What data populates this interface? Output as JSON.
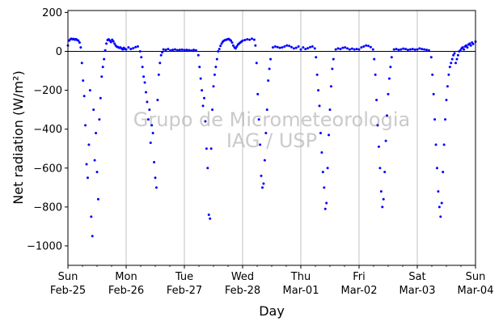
{
  "chart_data": {
    "type": "scatter",
    "title": "",
    "xlabel": "Day",
    "ylabel": "Net radiation (W/m²)",
    "ylim": [
      -1100,
      210
    ],
    "xlim": [
      0,
      7
    ],
    "yticks": [
      200,
      0,
      -200,
      -400,
      -600,
      -800,
      -1000
    ],
    "ytick_labels": [
      "200",
      "0",
      "−200",
      "−400",
      "−600",
      "−800",
      "−1000"
    ],
    "xticks": [
      {
        "pos": 0,
        "day": "Sun",
        "date": "Feb-25"
      },
      {
        "pos": 1,
        "day": "Mon",
        "date": "Feb-26"
      },
      {
        "pos": 2,
        "day": "Tue",
        "date": "Feb-27"
      },
      {
        "pos": 3,
        "day": "Wed",
        "date": "Feb-28"
      },
      {
        "pos": 4,
        "day": "Thu",
        "date": "Mar-01"
      },
      {
        "pos": 5,
        "day": "Fri",
        "date": "Mar-02"
      },
      {
        "pos": 6,
        "day": "Sat",
        "date": "Mar-03"
      },
      {
        "pos": 7,
        "day": "Sun",
        "date": "Mar-04"
      }
    ],
    "grid": "vertical",
    "zero_line": 0,
    "marker_color": "#0000ff",
    "watermark": [
      "Grupo de Micrometeorologia",
      "IAG / USP"
    ],
    "series": [
      {
        "values": [
          [
            0.0,
            30
          ],
          [
            0.02,
            55
          ],
          [
            0.04,
            62
          ],
          [
            0.06,
            65
          ],
          [
            0.08,
            62
          ],
          [
            0.1,
            64
          ],
          [
            0.12,
            60
          ],
          [
            0.14,
            63
          ],
          [
            0.16,
            58
          ],
          [
            0.18,
            55
          ],
          [
            0.2,
            45
          ],
          [
            0.22,
            20
          ],
          [
            0.24,
            -60
          ],
          [
            0.26,
            -150
          ],
          [
            0.28,
            -230
          ],
          [
            0.3,
            -380
          ],
          [
            0.32,
            -580
          ],
          [
            0.34,
            -650
          ],
          [
            0.36,
            -480
          ],
          [
            0.38,
            -200
          ],
          [
            0.4,
            -850
          ],
          [
            0.42,
            -950
          ],
          [
            0.44,
            -300
          ],
          [
            0.46,
            -560
          ],
          [
            0.48,
            -420
          ],
          [
            0.5,
            -620
          ],
          [
            0.52,
            -760
          ],
          [
            0.54,
            -350
          ],
          [
            0.56,
            -240
          ],
          [
            0.58,
            -130
          ],
          [
            0.6,
            -80
          ],
          [
            0.62,
            -40
          ],
          [
            0.64,
            5
          ],
          [
            0.66,
            40
          ],
          [
            0.68,
            58
          ],
          [
            0.7,
            62
          ],
          [
            0.72,
            55
          ],
          [
            0.74,
            48
          ],
          [
            0.76,
            60
          ],
          [
            0.78,
            52
          ],
          [
            0.8,
            40
          ],
          [
            0.82,
            30
          ],
          [
            0.84,
            24
          ],
          [
            0.86,
            22
          ],
          [
            0.88,
            18
          ],
          [
            0.9,
            20
          ],
          [
            0.92,
            15
          ],
          [
            0.94,
            10
          ],
          [
            0.96,
            18
          ],
          [
            0.98,
            12
          ],
          [
            1.0,
            10
          ],
          [
            1.04,
            20
          ],
          [
            1.08,
            12
          ],
          [
            1.12,
            16
          ],
          [
            1.16,
            22
          ],
          [
            1.2,
            25
          ],
          [
            1.24,
            0
          ],
          [
            1.26,
            -30
          ],
          [
            1.28,
            -80
          ],
          [
            1.3,
            -130
          ],
          [
            1.32,
            -160
          ],
          [
            1.34,
            -210
          ],
          [
            1.36,
            -260
          ],
          [
            1.38,
            -350
          ],
          [
            1.4,
            -300
          ],
          [
            1.42,
            -470
          ],
          [
            1.44,
            -380
          ],
          [
            1.46,
            -420
          ],
          [
            1.48,
            -570
          ],
          [
            1.5,
            -650
          ],
          [
            1.52,
            -700
          ],
          [
            1.54,
            -250
          ],
          [
            1.56,
            -120
          ],
          [
            1.58,
            -60
          ],
          [
            1.6,
            -20
          ],
          [
            1.62,
            -5
          ],
          [
            1.64,
            10
          ],
          [
            1.68,
            8
          ],
          [
            1.72,
            12
          ],
          [
            1.76,
            5
          ],
          [
            1.8,
            8
          ],
          [
            1.84,
            10
          ],
          [
            1.88,
            6
          ],
          [
            1.92,
            8
          ],
          [
            1.96,
            9
          ],
          [
            2.0,
            7
          ],
          [
            2.04,
            8
          ],
          [
            2.08,
            6
          ],
          [
            2.12,
            4
          ],
          [
            2.16,
            8
          ],
          [
            2.2,
            5
          ],
          [
            2.24,
            -20
          ],
          [
            2.26,
            -80
          ],
          [
            2.28,
            -140
          ],
          [
            2.3,
            -200
          ],
          [
            2.32,
            -280
          ],
          [
            2.34,
            -240
          ],
          [
            2.36,
            -360
          ],
          [
            2.38,
            -500
          ],
          [
            2.4,
            -600
          ],
          [
            2.42,
            -840
          ],
          [
            2.44,
            -860
          ],
          [
            2.46,
            -500
          ],
          [
            2.48,
            -300
          ],
          [
            2.5,
            -180
          ],
          [
            2.52,
            -120
          ],
          [
            2.54,
            -80
          ],
          [
            2.56,
            -40
          ],
          [
            2.58,
            0
          ],
          [
            2.6,
            12
          ],
          [
            2.62,
            28
          ],
          [
            2.64,
            40
          ],
          [
            2.66,
            50
          ],
          [
            2.68,
            55
          ],
          [
            2.7,
            58
          ],
          [
            2.72,
            60
          ],
          [
            2.74,
            62
          ],
          [
            2.76,
            64
          ],
          [
            2.78,
            60
          ],
          [
            2.8,
            55
          ],
          [
            2.82,
            45
          ],
          [
            2.84,
            30
          ],
          [
            2.86,
            20
          ],
          [
            2.88,
            15
          ],
          [
            2.9,
            25
          ],
          [
            2.92,
            35
          ],
          [
            2.94,
            40
          ],
          [
            2.96,
            45
          ],
          [
            2.98,
            50
          ],
          [
            3.0,
            55
          ],
          [
            3.04,
            58
          ],
          [
            3.08,
            62
          ],
          [
            3.12,
            60
          ],
          [
            3.16,
            65
          ],
          [
            3.2,
            60
          ],
          [
            3.22,
            30
          ],
          [
            3.24,
            -60
          ],
          [
            3.26,
            -220
          ],
          [
            3.28,
            -350
          ],
          [
            3.3,
            -480
          ],
          [
            3.32,
            -640
          ],
          [
            3.34,
            -700
          ],
          [
            3.36,
            -680
          ],
          [
            3.38,
            -560
          ],
          [
            3.4,
            -420
          ],
          [
            3.42,
            -300
          ],
          [
            3.44,
            -150
          ],
          [
            3.46,
            -90
          ],
          [
            3.48,
            -40
          ],
          [
            3.52,
            20
          ],
          [
            3.56,
            25
          ],
          [
            3.6,
            22
          ],
          [
            3.64,
            18
          ],
          [
            3.68,
            20
          ],
          [
            3.72,
            25
          ],
          [
            3.76,
            30
          ],
          [
            3.8,
            28
          ],
          [
            3.84,
            22
          ],
          [
            3.88,
            15
          ],
          [
            3.92,
            18
          ],
          [
            3.96,
            25
          ],
          [
            4.0,
            10
          ],
          [
            4.04,
            20
          ],
          [
            4.08,
            12
          ],
          [
            4.12,
            16
          ],
          [
            4.16,
            22
          ],
          [
            4.2,
            25
          ],
          [
            4.24,
            15
          ],
          [
            4.26,
            -30
          ],
          [
            4.28,
            -120
          ],
          [
            4.3,
            -200
          ],
          [
            4.32,
            -280
          ],
          [
            4.34,
            -420
          ],
          [
            4.36,
            -520
          ],
          [
            4.38,
            -620
          ],
          [
            4.4,
            -700
          ],
          [
            4.42,
            -810
          ],
          [
            4.44,
            -780
          ],
          [
            4.46,
            -600
          ],
          [
            4.48,
            -430
          ],
          [
            4.5,
            -300
          ],
          [
            4.52,
            -180
          ],
          [
            4.54,
            -90
          ],
          [
            4.56,
            -40
          ],
          [
            4.6,
            10
          ],
          [
            4.64,
            15
          ],
          [
            4.68,
            12
          ],
          [
            4.72,
            18
          ],
          [
            4.76,
            20
          ],
          [
            4.8,
            15
          ],
          [
            4.84,
            10
          ],
          [
            4.88,
            14
          ],
          [
            4.92,
            10
          ],
          [
            4.96,
            12
          ],
          [
            5.0,
            10
          ],
          [
            5.04,
            20
          ],
          [
            5.08,
            25
          ],
          [
            5.12,
            30
          ],
          [
            5.16,
            28
          ],
          [
            5.2,
            22
          ],
          [
            5.24,
            10
          ],
          [
            5.26,
            -40
          ],
          [
            5.28,
            -120
          ],
          [
            5.3,
            -250
          ],
          [
            5.32,
            -380
          ],
          [
            5.34,
            -490
          ],
          [
            5.36,
            -600
          ],
          [
            5.38,
            -720
          ],
          [
            5.4,
            -800
          ],
          [
            5.42,
            -760
          ],
          [
            5.44,
            -620
          ],
          [
            5.46,
            -460
          ],
          [
            5.48,
            -330
          ],
          [
            5.5,
            -220
          ],
          [
            5.52,
            -140
          ],
          [
            5.54,
            -80
          ],
          [
            5.56,
            -30
          ],
          [
            5.6,
            10
          ],
          [
            5.64,
            12
          ],
          [
            5.68,
            8
          ],
          [
            5.72,
            10
          ],
          [
            5.76,
            14
          ],
          [
            5.8,
            12
          ],
          [
            5.84,
            8
          ],
          [
            5.88,
            10
          ],
          [
            5.92,
            12
          ],
          [
            5.96,
            9
          ],
          [
            6.0,
            10
          ],
          [
            6.04,
            15
          ],
          [
            6.08,
            12
          ],
          [
            6.12,
            10
          ],
          [
            6.16,
            8
          ],
          [
            6.2,
            5
          ],
          [
            6.24,
            -30
          ],
          [
            6.26,
            -120
          ],
          [
            6.28,
            -220
          ],
          [
            6.3,
            -350
          ],
          [
            6.32,
            -480
          ],
          [
            6.34,
            -600
          ],
          [
            6.36,
            -720
          ],
          [
            6.38,
            -800
          ],
          [
            6.4,
            -850
          ],
          [
            6.42,
            -780
          ],
          [
            6.44,
            -620
          ],
          [
            6.46,
            -480
          ],
          [
            6.48,
            -350
          ],
          [
            6.5,
            -250
          ],
          [
            6.52,
            -180
          ],
          [
            6.54,
            -120
          ],
          [
            6.56,
            -80
          ],
          [
            6.58,
            -60
          ],
          [
            6.6,
            -40
          ],
          [
            6.62,
            -20
          ],
          [
            6.64,
            -10
          ],
          [
            6.66,
            -60
          ],
          [
            6.68,
            -40
          ],
          [
            6.7,
            -20
          ],
          [
            6.72,
            0
          ],
          [
            6.74,
            5
          ],
          [
            6.76,
            15
          ],
          [
            6.78,
            20
          ],
          [
            6.8,
            10
          ],
          [
            6.82,
            25
          ],
          [
            6.84,
            30
          ],
          [
            6.86,
            20
          ],
          [
            6.88,
            35
          ],
          [
            6.9,
            40
          ],
          [
            6.92,
            30
          ],
          [
            6.94,
            45
          ],
          [
            6.96,
            38
          ],
          [
            7.0,
            50
          ]
        ]
      }
    ]
  }
}
